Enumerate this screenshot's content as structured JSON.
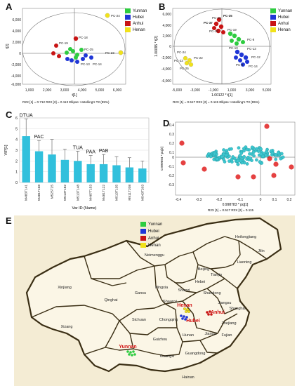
{
  "figure": {
    "panel_labels": [
      "A",
      "B",
      "C",
      "D",
      "E"
    ]
  },
  "legend": {
    "items": [
      {
        "label": "Yunnan",
        "color": "#2ecc40"
      },
      {
        "label": "Hubei",
        "color": "#1f36d6"
      },
      {
        "label": "Anhui",
        "color": "#c81414"
      },
      {
        "label": "Henan",
        "color": "#f1e21a"
      }
    ]
  },
  "panelA": {
    "ylabel": "t[2]",
    "xlabel": "t[1]",
    "footer": "R2X [1] = 0.712    R2X [2] = 0.113    Ellipse: Hotelling's T2 (95%)",
    "yticks": [
      "6,000",
      "4,000",
      "2,000",
      "0",
      "-2,000",
      "-4,000",
      "-6,000"
    ],
    "xticks": [
      "1,000",
      "2,000",
      "3,000",
      "4,000",
      "5,000",
      "6,000"
    ],
    "labels": [
      "PC-24",
      "PC-18",
      "PC-19",
      "PC-23",
      "PC-25",
      "PC-14",
      "PC-13"
    ]
  },
  "panelB": {
    "ylabel": "1.00095 * t[2]",
    "xlabel": "1.00122 * t[1]",
    "footer": "R2X [1] = 0.517    R2X [2] = 0.115    Ellipse: Hotelling's T2 (95%)",
    "yticks": [
      "6,000",
      "4,000",
      "2,000",
      "0",
      "-2,000",
      "-4,000",
      "-6,000"
    ],
    "xticks": [
      "-5,000",
      "-3,000",
      "-1,000",
      "1,000",
      "3,000",
      "5,000"
    ],
    "labels": [
      "PC-35",
      "PC-37",
      "PC-16",
      "PC-18",
      "PC-19",
      "PC-8",
      "PC-10",
      "PC-13",
      "PC-12",
      "PC-14",
      "PC-9",
      "PC-24",
      "PC-22",
      "PC-23",
      "PC-25"
    ]
  },
  "panelD": {
    "ylabel": "0.999694 * pq[2]",
    "xlabel": "0.998783 * pq[1]",
    "footer": "R2X [1] = 0.517    R2X [2] = 0.115",
    "yticks": [
      "0.4",
      "0.3",
      "0.2",
      "0.1",
      "0",
      "-0.1",
      "-0.2",
      "-0.3"
    ],
    "xticks": [
      "-0.4",
      "-0.3",
      "-0.2",
      "-0.1",
      "0",
      "0.1",
      "0.2"
    ]
  },
  "panelE": {
    "regions": [
      "Heilongjiang",
      "Jilin",
      "Liaoning",
      "Neimenggu",
      "Beijing",
      "Tianjin",
      "Hebei",
      "Shandong",
      "Shanxi",
      "Henan",
      "Shaanxi",
      "Ningxia",
      "Gansu",
      "Qinghai",
      "Xinjiang",
      "Xizang",
      "Sichuan",
      "Chongqing",
      "Hubei",
      "Anhui",
      "Jiangsu",
      "Shanghai",
      "Zhejiang",
      "Jiangxi",
      "Hunan",
      "Guizhou",
      "Yunnan",
      "Guangxi",
      "Guangdong",
      "Fujian",
      "Hainan"
    ]
  },
  "chart_data": {
    "type": "bar",
    "title": "",
    "xlabel": "Var ID (Name)",
    "ylabel": "VIP[1]",
    "ylim": [
      0,
      6
    ],
    "categories": [
      "M483T141",
      "M481T168",
      "M525T25",
      "M513T182",
      "M513T148",
      "M487T153",
      "M481T122",
      "M513T135",
      "M511T208",
      "M543T203"
    ],
    "values": [
      4.3,
      2.9,
      2.6,
      2.1,
      2.0,
      1.7,
      1.7,
      1.6,
      1.4,
      1.3
    ],
    "errors": [
      1.6,
      1.0,
      1.4,
      1.0,
      0.9,
      0.8,
      0.9,
      0.8,
      0.9,
      0.7
    ],
    "annotations": [
      {
        "category": "M483T141",
        "text": "DTUA"
      },
      {
        "category": "M481T168",
        "text": "PAC"
      },
      {
        "category": "M513T148",
        "text": "TUA"
      },
      {
        "category": "M487T153",
        "text": "PAA"
      },
      {
        "category": "M481T122",
        "text": "PAB"
      }
    ],
    "yticks": [
      "0",
      "1",
      "2",
      "3",
      "4",
      "5",
      "6"
    ],
    "grid": true,
    "bar_color": "#31c0dc"
  }
}
